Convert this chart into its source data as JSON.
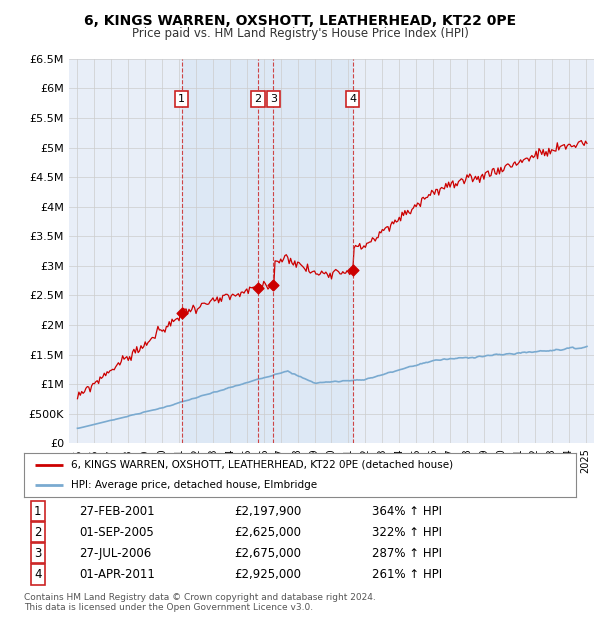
{
  "title": "6, KINGS WARREN, OXSHOTT, LEATHERHEAD, KT22 0PE",
  "subtitle": "Price paid vs. HM Land Registry's House Price Index (HPI)",
  "legend_label_red": "6, KINGS WARREN, OXSHOTT, LEATHERHEAD, KT22 0PE (detached house)",
  "legend_label_blue": "HPI: Average price, detached house, Elmbridge",
  "footer_line1": "Contains HM Land Registry data © Crown copyright and database right 2024.",
  "footer_line2": "This data is licensed under the Open Government Licence v3.0.",
  "transactions": [
    {
      "num": 1,
      "date": "27-FEB-2001",
      "date_x": 2001.15,
      "price": 2197900,
      "hpi_pct": "364% ↑ HPI"
    },
    {
      "num": 2,
      "date": "01-SEP-2005",
      "date_x": 2005.67,
      "price": 2625000,
      "hpi_pct": "322% ↑ HPI"
    },
    {
      "num": 3,
      "date": "27-JUL-2006",
      "date_x": 2006.57,
      "price": 2675000,
      "hpi_pct": "287% ↑ HPI"
    },
    {
      "num": 4,
      "date": "01-APR-2011",
      "date_x": 2011.25,
      "price": 2925000,
      "hpi_pct": "261% ↑ HPI"
    }
  ],
  "ylim": [
    0,
    6500000
  ],
  "yticks": [
    0,
    500000,
    1000000,
    1500000,
    2000000,
    2500000,
    3000000,
    3500000,
    4000000,
    4500000,
    5000000,
    5500000,
    6000000,
    6500000
  ],
  "xlim": [
    1994.5,
    2025.5
  ],
  "background_color": "#ffffff",
  "plot_bg_color": "#e8eef8",
  "grid_color": "#cccccc",
  "red_line_color": "#cc0000",
  "blue_line_color": "#7aaad0",
  "vline_color": "#cc3333",
  "marker_box_color": "#cc2222",
  "shade_color": "#dde8f5"
}
